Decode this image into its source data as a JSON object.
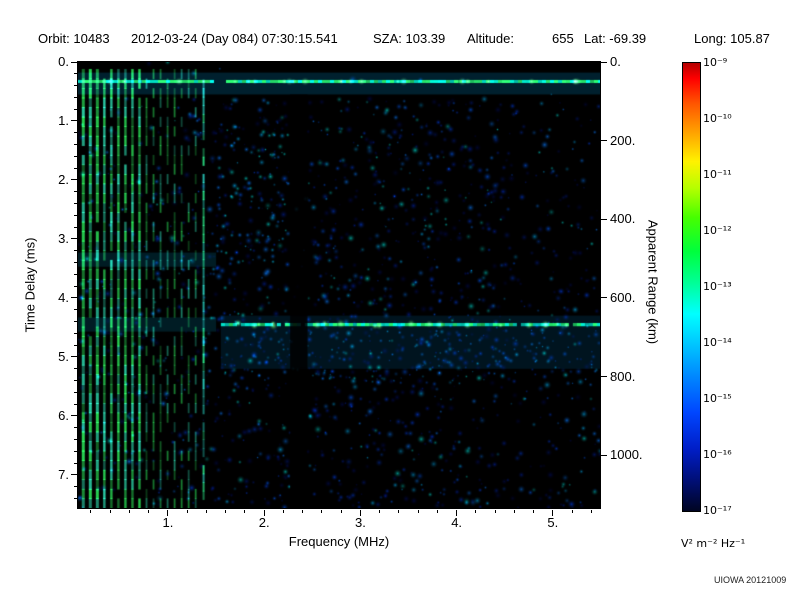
{
  "header": {
    "items": [
      "Orbit: 10483",
      "2012-03-24 (Day 084) 07:30:15.541",
      "SZA: 103.39",
      "Altitude:",
      "655",
      "Lat: -69.39",
      "Long: 105.87"
    ]
  },
  "footer": {
    "credit": "UIOWA 20121009"
  },
  "chart_data": {
    "type": "heatmap",
    "description": "Radar sounder ionogram: received spectral density versus frequency and time delay; plasma oscillation harmonic stripes at low frequency, ionospheric echo band near 0.33 ms, surface reflection band near 4.45 ms (~665 km apparent range), dark interference column near 2.3-2.45 MHz, diffuse blue noise elsewhere",
    "xlabel": "Frequency (MHz)",
    "ylabel_left": "Time Delay (ms)",
    "ylabel_right": "Apparent Range (km)",
    "x_range_mhz": [
      0.065,
      5.49
    ],
    "x_ticks": [
      1,
      2,
      3,
      4,
      5
    ],
    "x_tick_labels": [
      "1.",
      "2.",
      "3.",
      "4.",
      "5."
    ],
    "y_range_ms": [
      0,
      7.56
    ],
    "y_ticks_ms": [
      0,
      1,
      2,
      3,
      4,
      5,
      6,
      7
    ],
    "y_tick_labels": [
      "0.",
      "1.",
      "2.",
      "3.",
      "4.",
      "5.",
      "6.",
      "7."
    ],
    "right_axis_ticks_km": [
      0,
      200,
      400,
      600,
      800,
      1000
    ],
    "right_axis_tick_labels": [
      "0.",
      "200.",
      "400.",
      "600.",
      "800.",
      "1000."
    ],
    "km_per_ms": 150,
    "colorbar": {
      "scale": "log",
      "max": "1e-9",
      "min": "1e-17",
      "exponent_labels": [
        "10⁻⁹",
        "10⁻¹⁰",
        "10⁻¹¹",
        "10⁻¹²",
        "10⁻¹³",
        "10⁻¹⁴",
        "10⁻¹⁵",
        "10⁻¹⁶",
        "10⁻¹⁷"
      ],
      "units": "V² m⁻² Hz⁻¹",
      "stops": [
        [
          0,
          "#b40000"
        ],
        [
          0.035,
          "#ff0000"
        ],
        [
          0.09,
          "#ff5500"
        ],
        [
          0.155,
          "#ffa200"
        ],
        [
          0.22,
          "#fff200"
        ],
        [
          0.28,
          "#b4ff00"
        ],
        [
          0.345,
          "#46ff00"
        ],
        [
          0.42,
          "#00ff3c"
        ],
        [
          0.49,
          "#00ff96"
        ],
        [
          0.56,
          "#00ffff"
        ],
        [
          0.625,
          "#00c8ff"
        ],
        [
          0.7,
          "#0087ff"
        ],
        [
          0.78,
          "#0046ff"
        ],
        [
          0.86,
          "#001ec8"
        ],
        [
          0.93,
          "#000f78"
        ],
        [
          1,
          "#000522"
        ]
      ]
    },
    "features": {
      "background": "#000000",
      "seed": 20121009,
      "noise": {
        "count": 2900,
        "palette": [
          "#000a50",
          "#001e96",
          "#0038d2",
          "#0051e0",
          "#0a7bff",
          "#00a0e0",
          "#00d2c8"
        ]
      },
      "plasma_harmonic_stripes": {
        "f_start_mhz": 0.12,
        "f_end_mhz": 1.36,
        "spacing_mhz": 0.073,
        "color_green": "#2ce85a",
        "color_cyan": "#2ee0b4"
      },
      "bright_line_mhz": 1.37,
      "top_band_ms": 0.33,
      "surface_reflection": {
        "ms": 4.45,
        "f_start_mhz": 1.55
      },
      "faint_bands_ms": [
        3.35,
        4.45
      ],
      "dark_column_mhz": [
        2.27,
        2.45
      ],
      "band_gap_mhz": [
        1.4,
        1.64
      ]
    }
  }
}
